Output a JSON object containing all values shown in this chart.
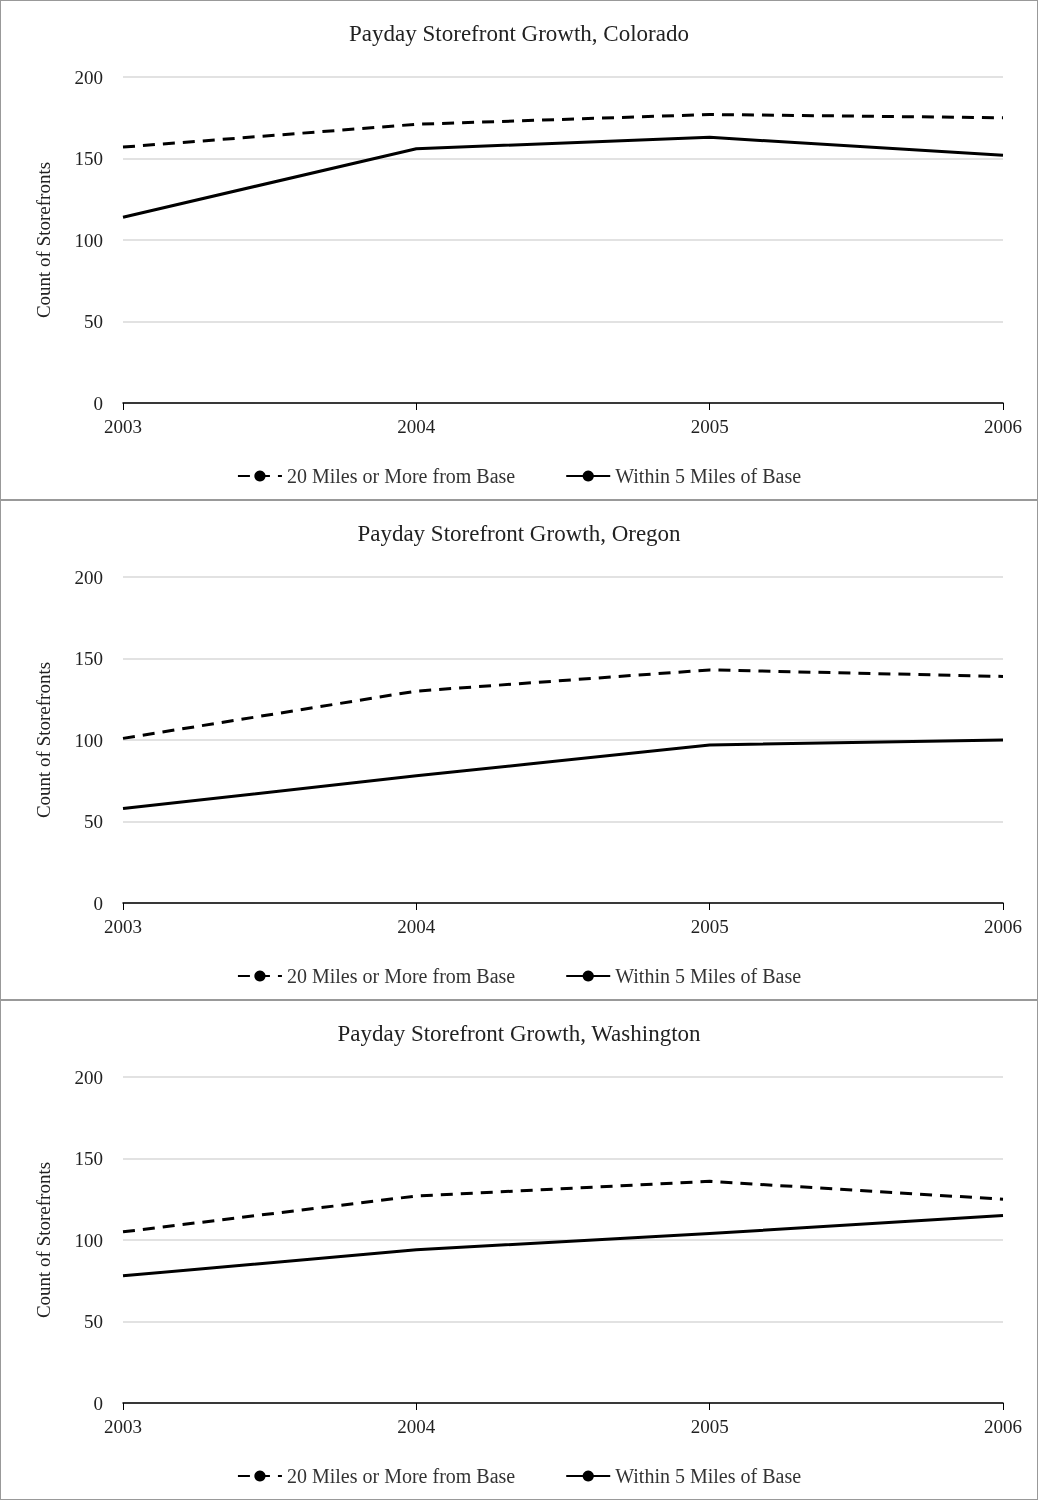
{
  "chart_data": [
    {
      "type": "line",
      "title": "Payday Storefront Growth, Colorado",
      "ylabel": "Count of Storefronts",
      "categories": [
        "2003",
        "2004",
        "2005",
        "2006"
      ],
      "ylim": [
        0,
        200
      ],
      "yticks": [
        0,
        50,
        100,
        150,
        200
      ],
      "grid": "y",
      "legend": "bottom",
      "marker": "none",
      "series": [
        {
          "name": "20 Miles or More from Base",
          "color": "#000000",
          "line_style": "dashed",
          "values": [
            157,
            171,
            177,
            175
          ]
        },
        {
          "name": "Within 5 Miles of Base",
          "color": "#000000",
          "line_style": "solid",
          "values": [
            114,
            156,
            163,
            152
          ]
        }
      ]
    },
    {
      "type": "line",
      "title": "Payday Storefront Growth, Oregon",
      "ylabel": "Count of Storefronts",
      "categories": [
        "2003",
        "2004",
        "2005",
        "2006"
      ],
      "ylim": [
        0,
        200
      ],
      "yticks": [
        0,
        50,
        100,
        150,
        200
      ],
      "grid": "y",
      "legend": "bottom",
      "marker": "none",
      "series": [
        {
          "name": "20 Miles or More from Base",
          "color": "#000000",
          "line_style": "dashed",
          "values": [
            101,
            130,
            143,
            139
          ]
        },
        {
          "name": "Within 5 Miles of Base",
          "color": "#000000",
          "line_style": "solid",
          "values": [
            58,
            78,
            97,
            100
          ]
        }
      ]
    },
    {
      "type": "line",
      "title": "Payday Storefront Growth, Washington",
      "ylabel": "Count of Storefronts",
      "categories": [
        "2003",
        "2004",
        "2005",
        "2006"
      ],
      "ylim": [
        0,
        200
      ],
      "yticks": [
        0,
        50,
        100,
        150,
        200
      ],
      "grid": "y",
      "legend": "bottom",
      "marker": "none",
      "series": [
        {
          "name": "20 Miles or More from Base",
          "color": "#000000",
          "line_style": "dashed",
          "values": [
            105,
            127,
            136,
            125
          ]
        },
        {
          "name": "Within 5 Miles of Base",
          "color": "#000000",
          "line_style": "solid",
          "values": [
            78,
            94,
            104,
            115
          ]
        }
      ]
    }
  ]
}
